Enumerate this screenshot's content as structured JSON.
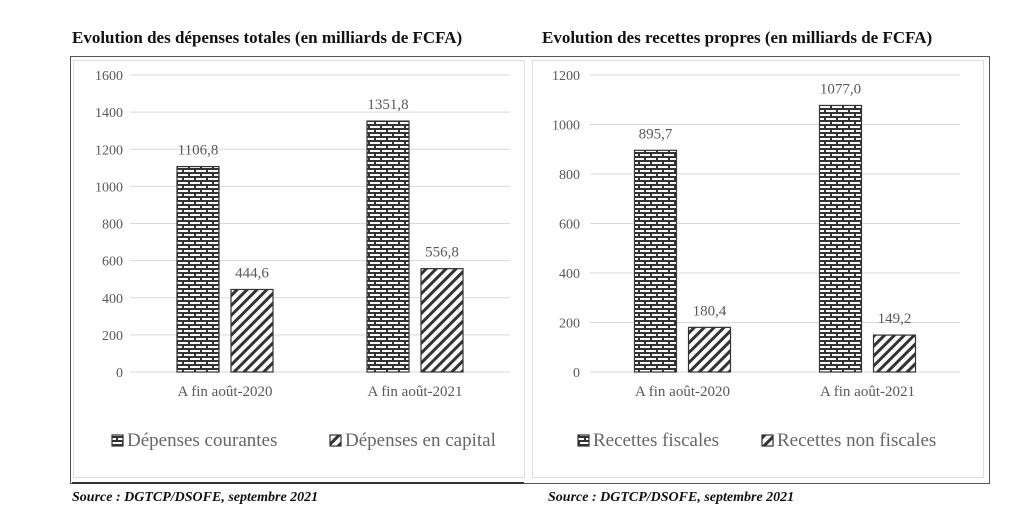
{
  "chart_data": [
    {
      "type": "bar",
      "title": "Evolution des dépenses totales (en milliards de FCFA)",
      "categories": [
        "A fin août-2020",
        "A fin août-2021"
      ],
      "series": [
        {
          "name": "Dépenses courantes",
          "values": [
            1106.8,
            1351.8
          ],
          "labels": [
            "1106,8",
            "1351,8"
          ],
          "pattern": "brick"
        },
        {
          "name": "Dépenses en capital",
          "values": [
            444.6,
            556.8
          ],
          "labels": [
            "444,6",
            "556,8"
          ],
          "pattern": "hatch"
        }
      ],
      "ylim": [
        0,
        1600
      ],
      "yticks": [
        0,
        200,
        400,
        600,
        800,
        1000,
        1200,
        1400,
        1600
      ],
      "xlabel": "",
      "ylabel": "",
      "grid": true,
      "legend": "bottom",
      "source": "Source : DGTCP/DSOFE, septembre 2021"
    },
    {
      "type": "bar",
      "title": "Evolution des recettes propres (en milliards de FCFA)",
      "categories": [
        "A fin août-2020",
        "A fin août-2021"
      ],
      "series": [
        {
          "name": "Recettes fiscales",
          "values": [
            895.7,
            1077.0
          ],
          "labels": [
            "895,7",
            "1077,0"
          ],
          "pattern": "brick"
        },
        {
          "name": "Recettes non fiscales",
          "values": [
            180.4,
            149.2
          ],
          "labels": [
            "180,4",
            "149,2"
          ],
          "pattern": "hatch"
        }
      ],
      "ylim": [
        0,
        1200
      ],
      "yticks": [
        0,
        200,
        400,
        600,
        800,
        1000,
        1200
      ],
      "xlabel": "",
      "ylabel": "",
      "grid": true,
      "legend": "bottom",
      "source": "Source : DGTCP/DSOFE, septembre 2021"
    }
  ],
  "colors": {
    "grid": "#d9d9d9",
    "tick_text": "#595959",
    "bar_stroke": "#333333",
    "bar_fill": "#ffffff"
  }
}
